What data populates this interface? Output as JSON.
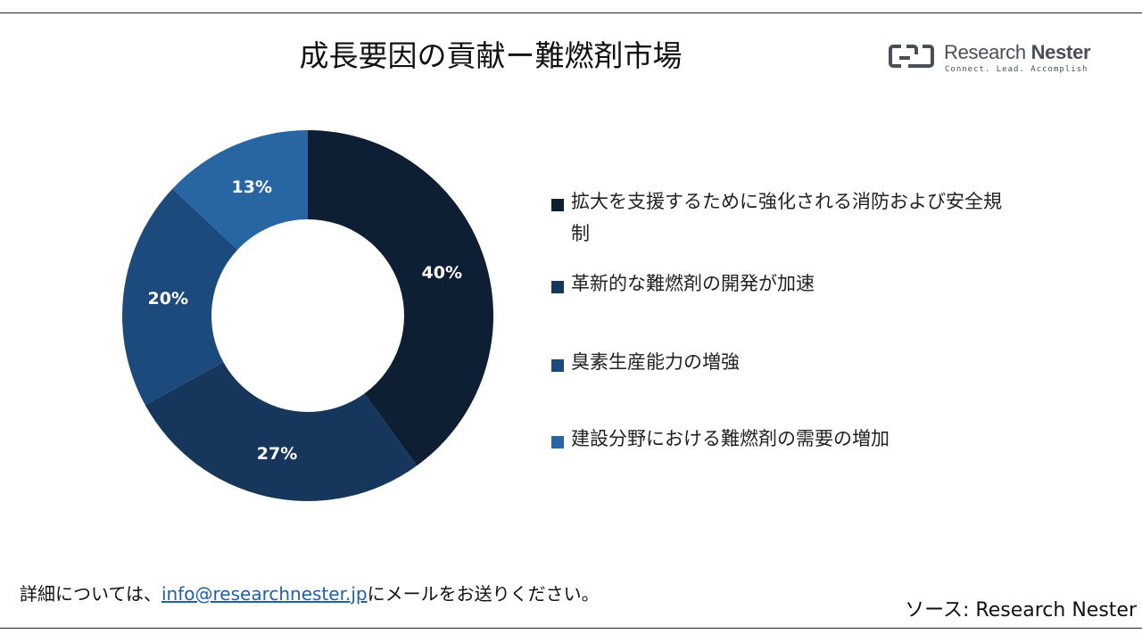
{
  "header": {
    "title": "成長要因の貢献ー難燃剤市場",
    "logo_name_regular": "Research ",
    "logo_name_bold": "Nester",
    "logo_tagline": "Connect. Lead. Accomplish"
  },
  "colors": {
    "series": [
      "#0e1f33",
      "#17365c",
      "#1d4a7d",
      "#2766a3"
    ],
    "label": "#ffffff"
  },
  "chart_data": {
    "type": "pie",
    "subtype": "donut",
    "categories": [
      "拡大を支援するために強化される消防および安全規制",
      "革新的な難燃剤の開発が加速",
      "臭素生産能力の増強",
      "建設分野における難燃剤の需要の増加"
    ],
    "values": [
      40,
      27,
      20,
      13
    ],
    "labels": [
      "40%",
      "27%",
      "20%",
      "13%"
    ],
    "legend_position": "right"
  },
  "footer": {
    "note_before": "詳細については、",
    "email": "info@researchnester.jp",
    "note_after": "にメールをお送りください。",
    "source": "ソース: Research Nester"
  }
}
